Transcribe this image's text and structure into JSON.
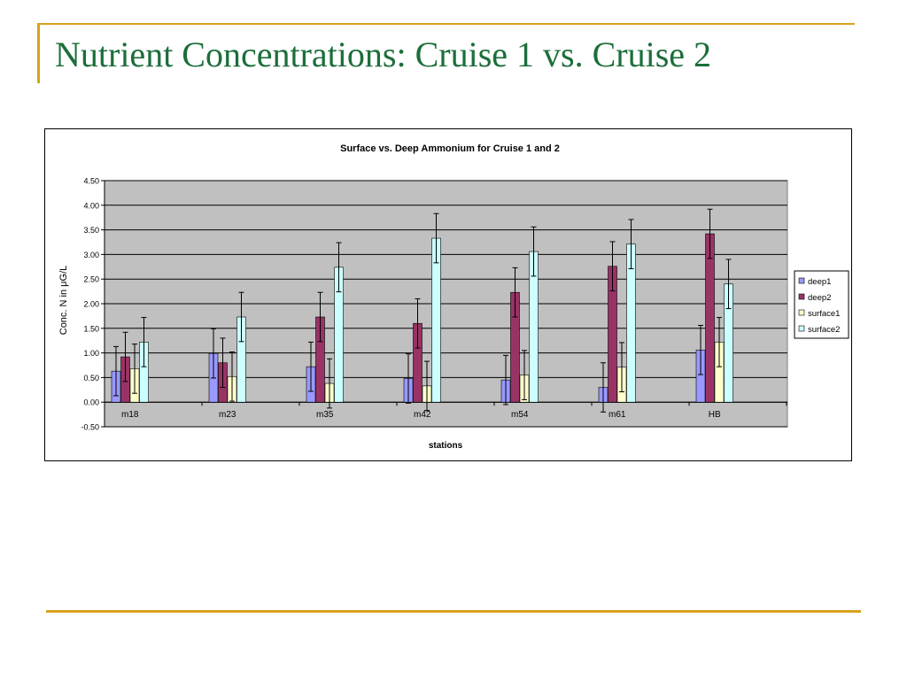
{
  "slide": {
    "title": "Nutrient Concentrations: Cruise 1 vs. Cruise 2"
  },
  "colors": {
    "accent": "#D9A21B",
    "title": "#1B6E3A",
    "plot_area": "#C0C0C0"
  },
  "chart_data": {
    "type": "bar",
    "title": "Surface vs. Deep Ammonium for Cruise 1 and 2",
    "xlabel": "stations",
    "ylabel_prefix": "Conc. N in ",
    "ylabel_unit": "μG/L",
    "categories": [
      "m18",
      "m23",
      "m35",
      "m42",
      "m54",
      "m61",
      "HB"
    ],
    "ylim": [
      -0.5,
      4.5
    ],
    "yticks": [
      "4.50",
      "4.00",
      "3.50",
      "3.00",
      "2.50",
      "2.00",
      "1.50",
      "1.00",
      "0.50",
      "0.00",
      "-0.50"
    ],
    "grid": true,
    "legend_position": "right",
    "series": [
      {
        "name": "deep1",
        "color": "#9999FF",
        "values": [
          0.63,
          0.99,
          0.72,
          0.48,
          0.45,
          0.3,
          1.06
        ],
        "errors": [
          0.5,
          0.5,
          0.5,
          0.5,
          0.5,
          0.5,
          0.5
        ]
      },
      {
        "name": "deep2",
        "color": "#993366",
        "values": [
          0.92,
          0.8,
          1.73,
          1.6,
          2.23,
          2.76,
          3.42
        ],
        "errors": [
          0.5,
          0.5,
          0.5,
          0.5,
          0.5,
          0.5,
          0.5
        ]
      },
      {
        "name": "surface1",
        "color": "#FFFFCC",
        "values": [
          0.68,
          0.52,
          0.38,
          0.33,
          0.55,
          0.71,
          1.22
        ],
        "errors": [
          0.5,
          0.5,
          0.5,
          0.5,
          0.5,
          0.5,
          0.5
        ]
      },
      {
        "name": "surface2",
        "color": "#CCFFFF",
        "values": [
          1.22,
          1.73,
          2.74,
          3.33,
          3.06,
          3.21,
          2.4
        ],
        "errors": [
          0.5,
          0.5,
          0.5,
          0.5,
          0.5,
          0.5,
          0.5
        ]
      }
    ]
  }
}
